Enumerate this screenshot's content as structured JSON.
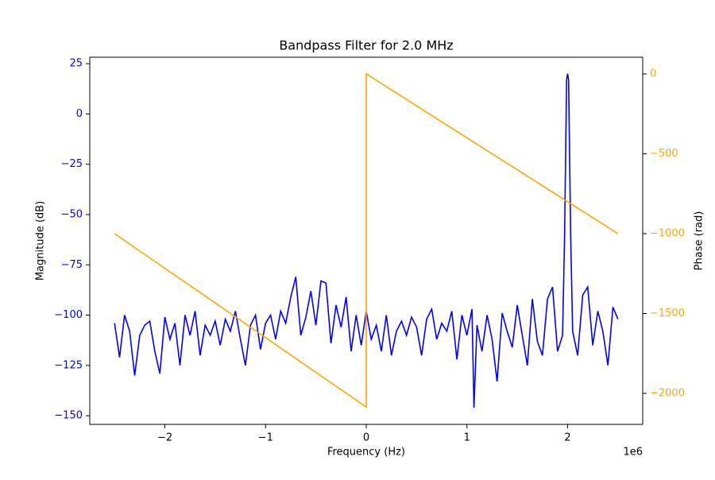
{
  "chart_data": {
    "type": "line",
    "title": "Bandpass Filter for 2.0 MHz",
    "x_label": "Frequency (Hz)",
    "x_offset_label": "1e6",
    "y_label": "Magnitude (dB)",
    "y2_label": "Phase (rad)",
    "xlim": [
      -2746000,
      2746000
    ],
    "xticks": [
      {
        "value": -2000000,
        "label": "−2"
      },
      {
        "value": -1000000,
        "label": "−1"
      },
      0,
      {
        "value": 1000000,
        "label": "1"
      },
      {
        "value": 2000000,
        "label": "2"
      }
    ],
    "ylim": [
      -154.3,
      28.2
    ],
    "yticks": [
      {
        "value": -150,
        "label": "−150"
      },
      {
        "value": -125,
        "label": "−125"
      },
      {
        "value": -100,
        "label": "−100"
      },
      {
        "value": -75,
        "label": "−75"
      },
      {
        "value": -50,
        "label": "−50"
      },
      {
        "value": -25,
        "label": "−25"
      },
      0,
      25
    ],
    "y2lim": [
      -2194,
      104.5
    ],
    "y2ticks": [
      {
        "value": -2000,
        "label": "−2000"
      },
      {
        "value": -1500,
        "label": "−1500"
      },
      {
        "value": -1000,
        "label": "−1000"
      },
      {
        "value": -500,
        "label": "−500"
      },
      0
    ],
    "series": [
      {
        "name": "Magnitude",
        "color": "#0000ff",
        "axis": "y",
        "x": [
          -2500000,
          -2450000,
          -2400000,
          -2350000,
          -2300000,
          -2250000,
          -2200000,
          -2150000,
          -2100000,
          -2050000,
          -2000000,
          -1950000,
          -1900000,
          -1850000,
          -1800000,
          -1750000,
          -1700000,
          -1650000,
          -1600000,
          -1550000,
          -1500000,
          -1450000,
          -1400000,
          -1350000,
          -1300000,
          -1250000,
          -1200000,
          -1150000,
          -1100000,
          -1050000,
          -1000000,
          -950000,
          -900000,
          -850000,
          -800000,
          -750000,
          -700000,
          -650000,
          -600000,
          -550000,
          -500000,
          -450000,
          -400000,
          -350000,
          -300000,
          -250000,
          -200000,
          -150000,
          -100000,
          -50000,
          0,
          50000,
          100000,
          150000,
          200000,
          250000,
          300000,
          350000,
          400000,
          450000,
          500000,
          550000,
          600000,
          650000,
          700000,
          750000,
          800000,
          850000,
          900000,
          950000,
          1000000,
          1050000,
          1070000,
          1100000,
          1150000,
          1200000,
          1250000,
          1300000,
          1350000,
          1400000,
          1450000,
          1500000,
          1550000,
          1600000,
          1650000,
          1700000,
          1750000,
          1800000,
          1850000,
          1900000,
          1950000,
          1970000,
          1990000,
          2000000,
          2010000,
          2030000,
          2050000,
          2100000,
          2150000,
          2200000,
          2250000,
          2300000,
          2350000,
          2400000,
          2450000,
          2500000
        ],
        "values": [
          -104,
          -121,
          -100,
          -108,
          -130,
          -110,
          -105,
          -103,
          -118,
          -129,
          -101,
          -112,
          -104,
          -125,
          -100,
          -110,
          -98,
          -120,
          -105,
          -110,
          -103,
          -115,
          -102,
          -108,
          -98,
          -112,
          -125,
          -105,
          -100,
          -117,
          -104,
          -100,
          -112,
          -98,
          -104,
          -91,
          -81,
          -110,
          -101,
          -88,
          -105,
          -83,
          -84,
          -114,
          -95,
          -106,
          -91,
          -118,
          -100,
          -115,
          -98,
          -112,
          -105,
          -118,
          -100,
          -120,
          -108,
          -103,
          -110,
          -101,
          -106,
          -120,
          -102,
          -97,
          -112,
          -104,
          -108,
          -98,
          -122,
          -100,
          -110,
          -97,
          -146,
          -105,
          -118,
          -100,
          -112,
          -133,
          -99,
          -108,
          -116,
          -95,
          -110,
          -125,
          -92,
          -113,
          -120,
          -92,
          -86,
          -118,
          -110,
          -60,
          17,
          20,
          17,
          -60,
          -108,
          -120,
          -90,
          -86,
          -115,
          -98,
          -108,
          -125,
          -96,
          -102
        ]
      },
      {
        "name": "Phase",
        "color": "#ffa500",
        "axis": "y2",
        "x": [
          -2500000,
          -2000000,
          -1500000,
          -1000000,
          -500000,
          0,
          0,
          500000,
          1000000,
          1500000,
          2000000,
          2500000
        ],
        "values": [
          -1000,
          -1217,
          -1434,
          -1651,
          -1868,
          -2085,
          0,
          -200,
          -400,
          -600,
          -800,
          -1000
        ]
      }
    ]
  }
}
